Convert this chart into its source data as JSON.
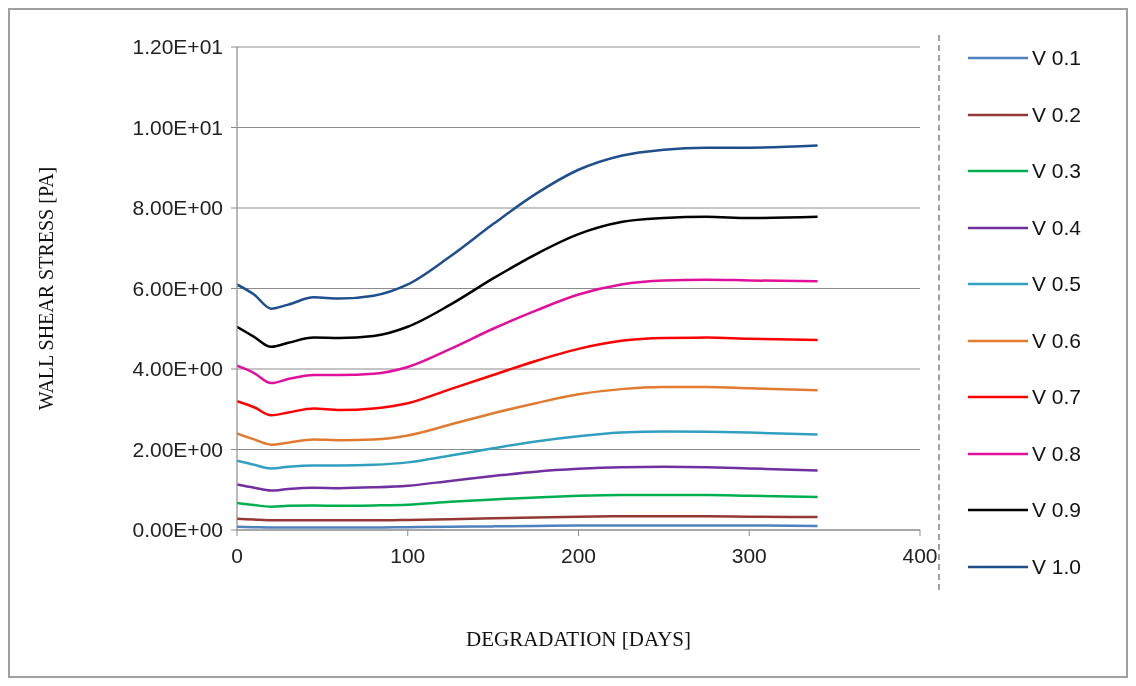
{
  "chart_data": {
    "type": "line",
    "xlabel": "DEGRADATION [DAYS]",
    "ylabel": "WALL SHEAR STRESS [PA]",
    "x": [
      0,
      10,
      20,
      30,
      45,
      60,
      80,
      100,
      125,
      150,
      175,
      200,
      225,
      250,
      275,
      300,
      340
    ],
    "xlim": [
      0,
      400
    ],
    "xticks": [
      0,
      100,
      200,
      300,
      400
    ],
    "ylim": [
      0,
      12
    ],
    "yticks": [
      {
        "value": 0,
        "label": "0.00E+00"
      },
      {
        "value": 2,
        "label": "2.00E+00"
      },
      {
        "value": 4,
        "label": "4.00E+00"
      },
      {
        "value": 6,
        "label": "6.00E+00"
      },
      {
        "value": 8,
        "label": "8.00E+00"
      },
      {
        "value": 10,
        "label": "1.00E+01"
      },
      {
        "value": 12,
        "label": "1.20E+01"
      }
    ],
    "grid": "y",
    "legend": "right",
    "marker": "none",
    "line_style": "solid",
    "series": [
      {
        "name": "V 0.1",
        "color": "#4f81bd",
        "values": [
          0.08,
          0.07,
          0.06,
          0.06,
          0.06,
          0.06,
          0.06,
          0.07,
          0.08,
          0.09,
          0.1,
          0.11,
          0.11,
          0.11,
          0.11,
          0.11,
          0.1
        ]
      },
      {
        "name": "V 0.2",
        "color": "#953735",
        "values": [
          0.28,
          0.26,
          0.24,
          0.24,
          0.24,
          0.24,
          0.24,
          0.25,
          0.27,
          0.29,
          0.31,
          0.33,
          0.34,
          0.34,
          0.34,
          0.33,
          0.32
        ]
      },
      {
        "name": "V 0.3",
        "color": "#00b050",
        "values": [
          0.67,
          0.62,
          0.58,
          0.6,
          0.61,
          0.6,
          0.61,
          0.63,
          0.7,
          0.76,
          0.81,
          0.85,
          0.87,
          0.87,
          0.87,
          0.85,
          0.82
        ]
      },
      {
        "name": "V 0.4",
        "color": "#7030a0",
        "values": [
          1.13,
          1.05,
          0.98,
          1.02,
          1.05,
          1.04,
          1.06,
          1.1,
          1.22,
          1.34,
          1.45,
          1.52,
          1.56,
          1.57,
          1.56,
          1.53,
          1.48
        ]
      },
      {
        "name": "V 0.5",
        "color": "#31a0c0",
        "values": [
          1.72,
          1.62,
          1.53,
          1.57,
          1.6,
          1.6,
          1.62,
          1.68,
          1.85,
          2.03,
          2.2,
          2.33,
          2.42,
          2.45,
          2.44,
          2.42,
          2.37
        ]
      },
      {
        "name": "V 0.6",
        "color": "#e07b30",
        "values": [
          2.4,
          2.25,
          2.12,
          2.17,
          2.25,
          2.23,
          2.25,
          2.35,
          2.62,
          2.9,
          3.15,
          3.37,
          3.5,
          3.55,
          3.55,
          3.52,
          3.47
        ]
      },
      {
        "name": "V 0.7",
        "color": "#ff0000",
        "values": [
          3.2,
          3.05,
          2.85,
          2.92,
          3.02,
          2.98,
          3.02,
          3.15,
          3.5,
          3.85,
          4.2,
          4.5,
          4.7,
          4.77,
          4.78,
          4.75,
          4.72
        ]
      },
      {
        "name": "V 0.8",
        "color": "#e0109c",
        "values": [
          4.08,
          3.9,
          3.65,
          3.75,
          3.85,
          3.85,
          3.88,
          4.05,
          4.5,
          5.0,
          5.45,
          5.85,
          6.1,
          6.2,
          6.22,
          6.2,
          6.18
        ]
      },
      {
        "name": "V 0.9",
        "color": "#000000",
        "values": [
          5.05,
          4.8,
          4.55,
          4.65,
          4.78,
          4.77,
          4.82,
          5.05,
          5.6,
          6.25,
          6.85,
          7.35,
          7.65,
          7.75,
          7.78,
          7.75,
          7.78
        ]
      },
      {
        "name": "V 1.0",
        "color": "#1f4e8c",
        "values": [
          6.1,
          5.85,
          5.5,
          5.6,
          5.78,
          5.75,
          5.82,
          6.1,
          6.8,
          7.6,
          8.35,
          8.95,
          9.3,
          9.45,
          9.5,
          9.5,
          9.55
        ]
      }
    ]
  }
}
